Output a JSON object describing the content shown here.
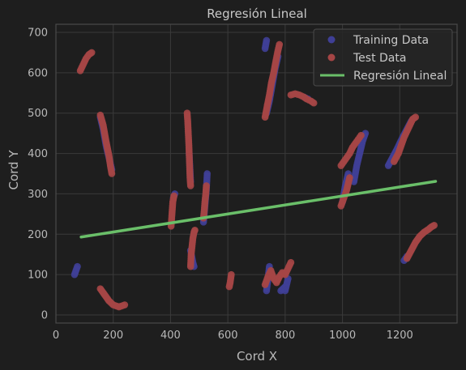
{
  "chart_data": {
    "type": "scatter",
    "title": "Regresión Lineal",
    "xlabel": "Cord X",
    "ylabel": "Cord Y",
    "xlim": [
      0,
      1400
    ],
    "ylim": [
      -20,
      720
    ],
    "xticks": [
      0,
      200,
      400,
      600,
      800,
      1000,
      1200
    ],
    "yticks": [
      0,
      100,
      200,
      300,
      400,
      500,
      600,
      700
    ],
    "grid": true,
    "legend_position": "top-right",
    "colors": {
      "background": "#1e1e1e",
      "spine": "#4a4a4a",
      "grid": "#3a3a3a",
      "training": "#3f3f96",
      "test": "#a54545",
      "regression": "#6abf69",
      "legend_bg": "#262626",
      "legend_border": "#4a4a4a"
    },
    "series": [
      {
        "name": "Training Data",
        "kind": "scatter",
        "segments": [
          [
            [
              65,
              100
            ],
            [
              70,
              110
            ],
            [
              75,
              120
            ]
          ],
          [
            [
              155,
              490
            ],
            [
              165,
              460
            ],
            [
              175,
              420
            ],
            [
              185,
              390
            ],
            [
              195,
              360
            ]
          ],
          [
            [
              410,
              290
            ],
            [
              415,
              300
            ]
          ],
          [
            [
              465,
              400
            ],
            [
              468,
              360
            ],
            [
              470,
              330
            ]
          ],
          [
            [
              470,
              160
            ],
            [
              478,
              130
            ],
            [
              482,
              120
            ]
          ],
          [
            [
              515,
              230
            ],
            [
              520,
              270
            ],
            [
              525,
              310
            ],
            [
              528,
              350
            ]
          ],
          [
            [
              730,
              660
            ],
            [
              735,
              680
            ]
          ],
          [
            [
              735,
              500
            ],
            [
              745,
              530
            ],
            [
              755,
              570
            ],
            [
              765,
              610
            ],
            [
              775,
              640
            ]
          ],
          [
            [
              735,
              60
            ],
            [
              745,
              120
            ]
          ],
          [
            [
              785,
              60
            ],
            [
              800,
              70
            ]
          ],
          [
            [
              800,
              60
            ],
            [
              810,
              90
            ]
          ],
          [
            [
              865,
              540
            ],
            [
              880,
              535
            ]
          ],
          [
            [
              1000,
              280
            ],
            [
              1010,
              320
            ],
            [
              1020,
              350
            ]
          ],
          [
            [
              1040,
              330
            ],
            [
              1050,
              370
            ],
            [
              1060,
              400
            ],
            [
              1070,
              430
            ],
            [
              1080,
              450
            ]
          ],
          [
            [
              1160,
              370
            ],
            [
              1175,
              390
            ],
            [
              1190,
              410
            ],
            [
              1210,
              440
            ],
            [
              1225,
              460
            ],
            [
              1240,
              480
            ]
          ],
          [
            [
              1215,
              135
            ],
            [
              1225,
              145
            ]
          ]
        ]
      },
      {
        "name": "Test Data",
        "kind": "scatter",
        "segments": [
          [
            [
              85,
              605
            ],
            [
              95,
              620
            ],
            [
              105,
              635
            ],
            [
              115,
              645
            ],
            [
              125,
              650
            ]
          ],
          [
            [
              155,
              495
            ],
            [
              165,
              470
            ],
            [
              175,
              430
            ],
            [
              185,
              395
            ],
            [
              190,
              370
            ],
            [
              195,
              350
            ]
          ],
          [
            [
              155,
              65
            ],
            [
              170,
              50
            ],
            [
              185,
              35
            ],
            [
              200,
              25
            ],
            [
              220,
              20
            ],
            [
              240,
              25
            ]
          ],
          [
            [
              402,
              220
            ],
            [
              404,
              240
            ],
            [
              406,
              260
            ],
            [
              408,
              280
            ],
            [
              412,
              295
            ]
          ],
          [
            [
              458,
              500
            ],
            [
              460,
              480
            ],
            [
              462,
              450
            ],
            [
              464,
              420
            ],
            [
              466,
              380
            ],
            [
              468,
              340
            ],
            [
              470,
              320
            ]
          ],
          [
            [
              470,
              120
            ],
            [
              472,
              150
            ],
            [
              475,
              170
            ],
            [
              478,
              190
            ],
            [
              482,
              205
            ],
            [
              485,
              210
            ]
          ],
          [
            [
              515,
              240
            ],
            [
              518,
              260
            ],
            [
              520,
              280
            ],
            [
              523,
              300
            ],
            [
              525,
              320
            ]
          ],
          [
            [
              605,
              70
            ],
            [
              608,
              80
            ],
            [
              610,
              90
            ],
            [
              612,
              100
            ]
          ],
          [
            [
              730,
              490
            ],
            [
              738,
              520
            ],
            [
              745,
              545
            ],
            [
              752,
              575
            ],
            [
              760,
              600
            ],
            [
              768,
              630
            ],
            [
              775,
              655
            ],
            [
              780,
              670
            ]
          ],
          [
            [
              730,
              75
            ],
            [
              740,
              95
            ],
            [
              750,
              110
            ],
            [
              760,
              90
            ],
            [
              770,
              80
            ],
            [
              780,
              95
            ],
            [
              790,
              105
            ],
            [
              800,
              100
            ],
            [
              810,
              115
            ],
            [
              820,
              130
            ]
          ],
          [
            [
              820,
              545
            ],
            [
              835,
              548
            ],
            [
              850,
              545
            ],
            [
              865,
              540
            ],
            [
              875,
              535
            ],
            [
              890,
              530
            ],
            [
              900,
              525
            ]
          ],
          [
            [
              995,
              370
            ],
            [
              1005,
              380
            ],
            [
              1015,
              390
            ],
            [
              1025,
              400
            ],
            [
              1035,
              415
            ],
            [
              1045,
              425
            ],
            [
              1055,
              435
            ],
            [
              1065,
              445
            ]
          ],
          [
            [
              995,
              270
            ],
            [
              1000,
              280
            ],
            [
              1005,
              290
            ],
            [
              1010,
              300
            ],
            [
              1015,
              310
            ],
            [
              1020,
              325
            ],
            [
              1025,
              340
            ]
          ],
          [
            [
              1180,
              380
            ],
            [
              1195,
              400
            ],
            [
              1205,
              420
            ],
            [
              1215,
              440
            ],
            [
              1225,
              455
            ],
            [
              1235,
              470
            ],
            [
              1245,
              485
            ],
            [
              1255,
              490
            ]
          ],
          [
            [
              1225,
              140
            ],
            [
              1240,
              160
            ],
            [
              1255,
              180
            ],
            [
              1270,
              195
            ],
            [
              1285,
              205
            ],
            [
              1300,
              212
            ],
            [
              1310,
              218
            ],
            [
              1320,
              222
            ]
          ]
        ]
      },
      {
        "name": "Regresión Lineal",
        "kind": "line",
        "x": [
          88,
          1325
        ],
        "y": [
          193,
          331
        ]
      }
    ]
  }
}
